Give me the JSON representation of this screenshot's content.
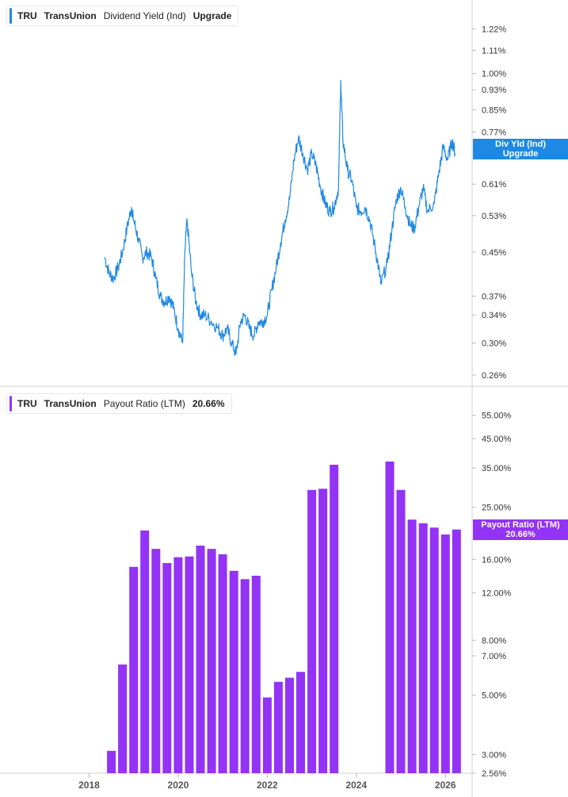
{
  "top_panel": {
    "legend": {
      "ticker": "TRU",
      "company": "TransUnion",
      "metric": "Dividend Yield (Ind)",
      "upgrade": "Upgrade"
    },
    "current_tag": {
      "label": "Div Yld (Ind)",
      "value": "Upgrade"
    },
    "color": "#1e88e5"
  },
  "bottom_panel": {
    "legend": {
      "ticker": "TRU",
      "company": "TransUnion",
      "metric": "Payout Ratio (LTM)",
      "value": "20.66%"
    },
    "current_tag": {
      "label": "Payout Ratio (LTM)",
      "value": "20.66%"
    },
    "color": "#9233f5"
  },
  "chart_data": [
    {
      "type": "line",
      "title": "Dividend Yield (Ind)",
      "y_scale": "log",
      "ylim": [
        0.25,
        1.35
      ],
      "y_tick_labels": [
        "1.22%",
        "1.11%",
        "1.00%",
        "0.93%",
        "0.85%",
        "0.77%",
        "0.61%",
        "0.53%",
        "0.45%",
        "0.37%",
        "0.34%",
        "0.30%",
        "0.26%"
      ],
      "y_tick_values": [
        1.22,
        1.11,
        1.0,
        0.93,
        0.85,
        0.77,
        0.61,
        0.53,
        0.45,
        0.37,
        0.34,
        0.3,
        0.26
      ],
      "xlim": [
        2016.0,
        2026.6
      ],
      "x_units": "year",
      "series": [
        {
          "points": [
            [
              2018.35,
              0.44
            ],
            [
              2018.45,
              0.41
            ],
            [
              2018.55,
              0.4
            ],
            [
              2018.65,
              0.42
            ],
            [
              2018.75,
              0.45
            ],
            [
              2018.85,
              0.5
            ],
            [
              2018.95,
              0.55
            ],
            [
              2019.0,
              0.52
            ],
            [
              2019.1,
              0.48
            ],
            [
              2019.2,
              0.44
            ],
            [
              2019.3,
              0.45
            ],
            [
              2019.4,
              0.44
            ],
            [
              2019.5,
              0.4
            ],
            [
              2019.6,
              0.37
            ],
            [
              2019.7,
              0.36
            ],
            [
              2019.8,
              0.37
            ],
            [
              2019.9,
              0.35
            ],
            [
              2020.0,
              0.32
            ],
            [
              2020.1,
              0.3
            ],
            [
              2020.15,
              0.45
            ],
            [
              2020.2,
              0.52
            ],
            [
              2020.3,
              0.41
            ],
            [
              2020.4,
              0.36
            ],
            [
              2020.5,
              0.34
            ],
            [
              2020.6,
              0.34
            ],
            [
              2020.75,
              0.33
            ],
            [
              2020.9,
              0.32
            ],
            [
              2021.0,
              0.31
            ],
            [
              2021.1,
              0.32
            ],
            [
              2021.2,
              0.3
            ],
            [
              2021.3,
              0.285
            ],
            [
              2021.4,
              0.33
            ],
            [
              2021.5,
              0.34
            ],
            [
              2021.6,
              0.32
            ],
            [
              2021.7,
              0.31
            ],
            [
              2021.8,
              0.33
            ],
            [
              2021.9,
              0.33
            ],
            [
              2022.0,
              0.34
            ],
            [
              2022.1,
              0.38
            ],
            [
              2022.2,
              0.42
            ],
            [
              2022.3,
              0.47
            ],
            [
              2022.4,
              0.52
            ],
            [
              2022.5,
              0.57
            ],
            [
              2022.6,
              0.68
            ],
            [
              2022.7,
              0.75
            ],
            [
              2022.8,
              0.7
            ],
            [
              2022.9,
              0.65
            ],
            [
              2023.0,
              0.7
            ],
            [
              2023.1,
              0.66
            ],
            [
              2023.2,
              0.6
            ],
            [
              2023.3,
              0.56
            ],
            [
              2023.4,
              0.54
            ],
            [
              2023.5,
              0.55
            ],
            [
              2023.6,
              0.6
            ],
            [
              2023.65,
              0.97
            ],
            [
              2023.7,
              0.74
            ],
            [
              2023.8,
              0.65
            ],
            [
              2023.9,
              0.62
            ],
            [
              2024.0,
              0.55
            ],
            [
              2024.1,
              0.54
            ],
            [
              2024.2,
              0.55
            ],
            [
              2024.3,
              0.52
            ],
            [
              2024.4,
              0.47
            ],
            [
              2024.5,
              0.42
            ],
            [
              2024.55,
              0.39
            ],
            [
              2024.7,
              0.43
            ],
            [
              2024.8,
              0.5
            ],
            [
              2024.9,
              0.57
            ],
            [
              2025.0,
              0.6
            ],
            [
              2025.1,
              0.55
            ],
            [
              2025.2,
              0.51
            ],
            [
              2025.3,
              0.5
            ],
            [
              2025.4,
              0.55
            ],
            [
              2025.5,
              0.6
            ],
            [
              2025.6,
              0.54
            ],
            [
              2025.75,
              0.56
            ],
            [
              2025.85,
              0.64
            ],
            [
              2025.95,
              0.72
            ],
            [
              2026.05,
              0.68
            ],
            [
              2026.15,
              0.74
            ],
            [
              2026.22,
              0.7
            ]
          ]
        }
      ]
    },
    {
      "type": "bar",
      "title": "Payout Ratio (LTM)",
      "y_scale": "log",
      "ylim": [
        2.56,
        62
      ],
      "y_tick_labels": [
        "55.00%",
        "45.00%",
        "35.00%",
        "25.00%",
        "16.00%",
        "12.00%",
        "8.00%",
        "7.00%",
        "5.00%",
        "3.00%",
        "2.56%"
      ],
      "y_tick_values": [
        55,
        45,
        35,
        25,
        16,
        12,
        8,
        7,
        5,
        3,
        2.56
      ],
      "xlim": [
        2016.0,
        2026.6
      ],
      "x_units": "year",
      "x_tick_labels": [
        "2018",
        "2020",
        "2022",
        "2024",
        "2026"
      ],
      "x_tick_values": [
        2018,
        2020,
        2022,
        2024,
        2026
      ],
      "series": [
        {
          "x": [
            2018.5,
            2018.75,
            2019.0,
            2019.25,
            2019.5,
            2019.75,
            2020.0,
            2020.25,
            2020.5,
            2020.75,
            2021.0,
            2021.25,
            2021.5,
            2021.75,
            2022.0,
            2022.25,
            2022.5,
            2022.75,
            2023.0,
            2023.25,
            2023.5,
            2024.75,
            2025.0,
            2025.25,
            2025.5,
            2025.75,
            2026.0,
            2026.25
          ],
          "values": [
            3.1,
            6.5,
            15.0,
            20.5,
            17.5,
            15.5,
            16.3,
            16.4,
            18.0,
            17.5,
            16.7,
            14.5,
            13.5,
            13.9,
            4.9,
            5.6,
            5.8,
            6.1,
            29.0,
            29.3,
            36.0,
            37.0,
            29.0,
            22.5,
            21.8,
            21.0,
            19.8,
            20.66
          ]
        }
      ]
    }
  ]
}
